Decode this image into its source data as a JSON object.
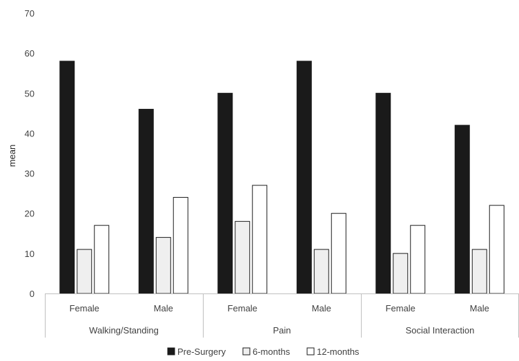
{
  "chart_data": {
    "type": "bar",
    "ylabel": "mean",
    "ylim": [
      0,
      70
    ],
    "yticks": [
      0,
      10,
      20,
      30,
      40,
      50,
      60,
      70
    ],
    "grid": false,
    "legend_position": "bottom",
    "groups": [
      {
        "label": "Walking/Standing",
        "categories": [
          "Female",
          "Male"
        ]
      },
      {
        "label": "Pain",
        "categories": [
          "Female",
          "Male"
        ]
      },
      {
        "label": "Social Interaction",
        "categories": [
          "Female",
          "Male"
        ]
      }
    ],
    "categories": [
      "Female",
      "Male",
      "Female",
      "Male",
      "Female",
      "Male"
    ],
    "series": [
      {
        "name": "Pre-Surgery",
        "color": "#1a1a1a",
        "values": [
          58,
          46,
          50,
          58,
          50,
          42
        ]
      },
      {
        "name": "6-months",
        "color": "#efefef",
        "values": [
          11,
          14,
          18,
          11,
          10,
          11
        ]
      },
      {
        "name": "12-months",
        "color": "#ffffff",
        "values": [
          17,
          24,
          27,
          20,
          17,
          22
        ]
      }
    ]
  }
}
